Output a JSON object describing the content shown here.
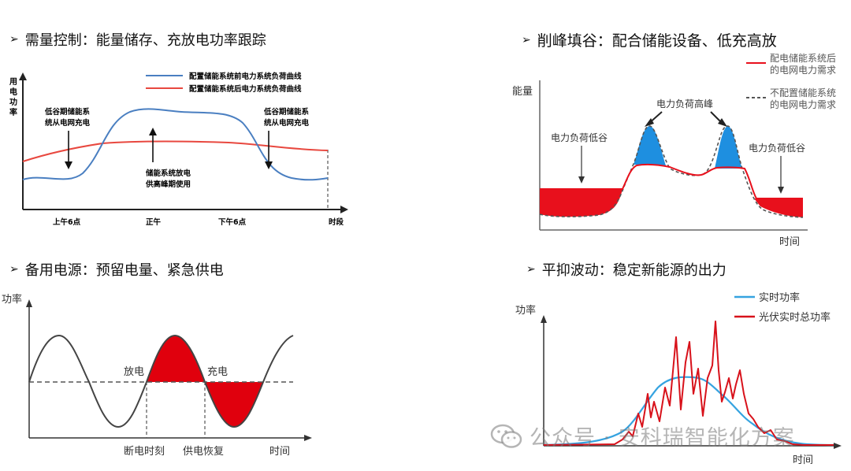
{
  "panels": {
    "demand": {
      "heading": "需量控制：能量储存、充放电功率跟踪",
      "y_label": [
        "用",
        "电",
        "功",
        "率"
      ],
      "legend": [
        "配置储能系统前电力系统负荷曲线",
        "配置储能系统后电力系统负荷曲线"
      ],
      "annot_left": [
        "低谷期储能系",
        "统从电网充电"
      ],
      "annot_right": [
        "低谷期储能系",
        "统从电网充电"
      ],
      "annot_mid": [
        "储能系统放电",
        "供高峰期使用"
      ],
      "x_ticks": [
        "上午6点",
        "正午",
        "下午6点"
      ],
      "x_label": "时段",
      "colors": {
        "before": "#4a7fc1",
        "after": "#e8483f"
      }
    },
    "peak": {
      "heading": "削峰填谷：配合储能设备、低充高放",
      "y_label": "能量",
      "x_label": "时间",
      "legend": [
        {
          "line1": "配电储能系统后",
          "line2": "的电网电力需求",
          "style": "solid"
        },
        {
          "line1": "不配置储能系统",
          "line2": "的电网电力需求",
          "style": "dashed"
        }
      ],
      "annot_peak": "电力负荷高峰",
      "annot_valley_left": "电力负荷低谷",
      "annot_valley_right": "电力负荷低谷",
      "colors": {
        "fill_red": "#e8101c",
        "fill_blue": "#1e8fe0"
      }
    },
    "backup": {
      "heading": "备用电源：预留电量、紧急供电",
      "y_label": "功率",
      "x_label": "时间",
      "label_discharge": "放电",
      "label_charge": "充电",
      "x_ticks": [
        "断电时刻",
        "供电恢复"
      ],
      "colors": {
        "fill": "#e0000d"
      }
    },
    "smooth": {
      "heading": "平抑波动：稳定新能源的出力",
      "y_label": "功率",
      "x_label": "时间",
      "legend": [
        "实时功率",
        "光伏实时总功率"
      ],
      "colors": {
        "realtime": "#35a3e0",
        "pv": "#d8121b"
      }
    }
  },
  "watermark": "公众号 · 安科瑞智能化方案"
}
